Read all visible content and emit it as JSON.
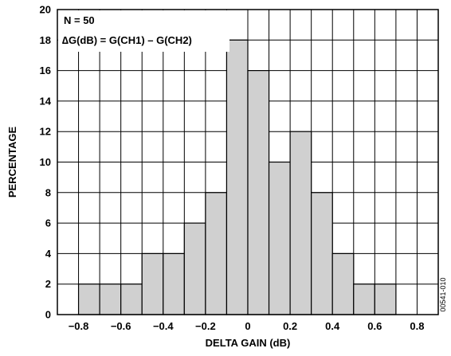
{
  "figure_id": "00541-010",
  "colors": {
    "bar_fill": "#d0d0d0",
    "bar_stroke": "#000000",
    "grid": "#000000",
    "background": "#ffffff"
  },
  "chart_data": {
    "type": "bar",
    "subtype": "histogram",
    "title": "",
    "xlabel": "DELTA GAIN (dB)",
    "ylabel": "PERCENTAGE",
    "xlim": [
      -0.9,
      0.9
    ],
    "ylim": [
      0,
      20
    ],
    "x_ticks": [
      -0.8,
      -0.6,
      -0.4,
      -0.2,
      0,
      0.2,
      0.4,
      0.6,
      0.8
    ],
    "x_tick_labels": [
      "−0.8",
      "−0.6",
      "−0.4",
      "−0.2",
      "0",
      "0.2",
      "0.4",
      "0.6",
      "0.8"
    ],
    "y_ticks": [
      0,
      2,
      4,
      6,
      8,
      10,
      12,
      14,
      16,
      18,
      20
    ],
    "y_tick_labels": [
      "0",
      "2",
      "4",
      "6",
      "8",
      "10",
      "12",
      "14",
      "16",
      "18",
      "20"
    ],
    "grid": true,
    "annotations": [
      "N = 50",
      "∆G(dB) = G(CH1) – G(CH2)"
    ],
    "bin_width": 0.1,
    "bins": [
      {
        "x0": -0.9,
        "x1": -0.8,
        "value": 0
      },
      {
        "x0": -0.8,
        "x1": -0.7,
        "value": 2
      },
      {
        "x0": -0.7,
        "x1": -0.6,
        "value": 2
      },
      {
        "x0": -0.6,
        "x1": -0.5,
        "value": 2
      },
      {
        "x0": -0.5,
        "x1": -0.4,
        "value": 4
      },
      {
        "x0": -0.4,
        "x1": -0.3,
        "value": 4
      },
      {
        "x0": -0.3,
        "x1": -0.2,
        "value": 6
      },
      {
        "x0": -0.2,
        "x1": -0.1,
        "value": 8
      },
      {
        "x0": -0.1,
        "x1": 0.0,
        "value": 18
      },
      {
        "x0": 0.0,
        "x1": 0.1,
        "value": 16
      },
      {
        "x0": 0.1,
        "x1": 0.2,
        "value": 10
      },
      {
        "x0": 0.2,
        "x1": 0.3,
        "value": 12
      },
      {
        "x0": 0.3,
        "x1": 0.4,
        "value": 8
      },
      {
        "x0": 0.4,
        "x1": 0.5,
        "value": 4
      },
      {
        "x0": 0.5,
        "x1": 0.6,
        "value": 2
      },
      {
        "x0": 0.6,
        "x1": 0.7,
        "value": 2
      },
      {
        "x0": 0.7,
        "x1": 0.8,
        "value": 0
      },
      {
        "x0": 0.8,
        "x1": 0.9,
        "value": 0
      }
    ]
  }
}
